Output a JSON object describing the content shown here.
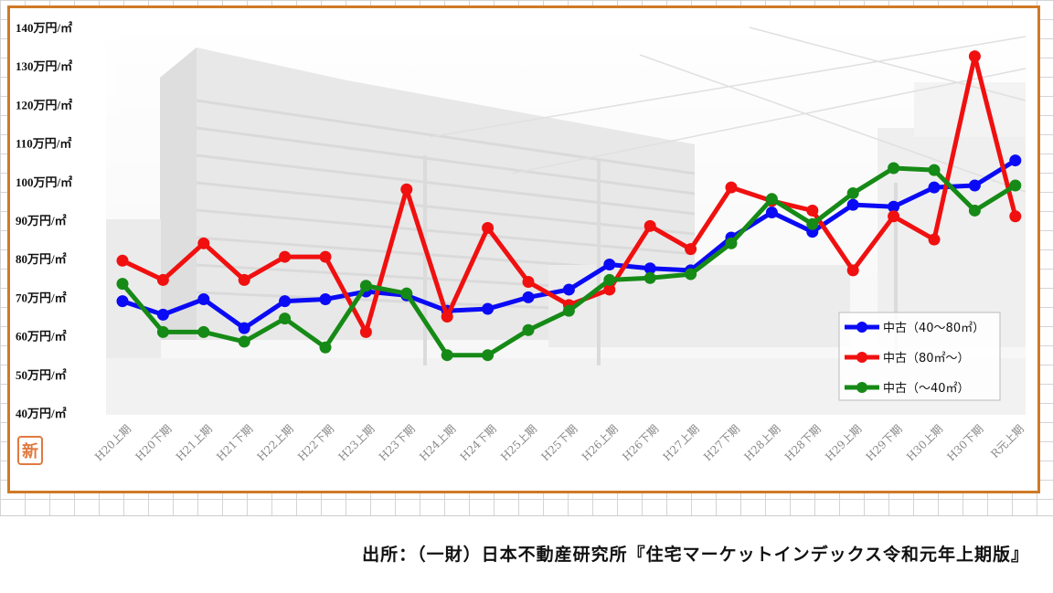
{
  "chart_data": {
    "type": "line",
    "categories": [
      "H20上期",
      "H20下期",
      "H21上期",
      "H21下期",
      "H22上期",
      "H22下期",
      "H23上期",
      "H23下期",
      "H24上期",
      "H24下期",
      "H25上期",
      "H25下期",
      "H26上期",
      "H26下期",
      "H27上期",
      "H27下期",
      "H28上期",
      "H28下期",
      "H29上期",
      "H29下期",
      "H30上期",
      "H30下期",
      "R元上期"
    ],
    "y_tick_labels": [
      "40万円/㎡",
      "50万円/㎡",
      "60万円/㎡",
      "70万円/㎡",
      "80万円/㎡",
      "90万円/㎡",
      "100万円/㎡",
      "110万円/㎡",
      "120万円/㎡",
      "130万円/㎡",
      "140万円/㎡"
    ],
    "ylim": [
      40,
      140
    ],
    "y_step": 10,
    "grid": false,
    "legend_position": "bottom-right",
    "series": [
      {
        "name": "中古（40～80㎡）",
        "color": "#0a0af5",
        "values": [
          69,
          65.5,
          69.5,
          62,
          69,
          69.5,
          71.5,
          70.5,
          66.5,
          67,
          70,
          72,
          78.5,
          77.5,
          77,
          85.5,
          92,
          87,
          94,
          93.5,
          98.5,
          99,
          105.5
        ]
      },
      {
        "name": "中古（80㎡～）",
        "color": "#f01010",
        "values": [
          79.5,
          74.5,
          84,
          74.5,
          80.5,
          80.5,
          61,
          98,
          65,
          88,
          74,
          68,
          72,
          88.5,
          82.5,
          98.5,
          95,
          92.5,
          77,
          91,
          85,
          132.5,
          91
        ]
      },
      {
        "name": "中古（～40㎡）",
        "color": "#168a16",
        "values": [
          73.5,
          61,
          61,
          58.5,
          64.5,
          57,
          73,
          71,
          55,
          55,
          61.5,
          66.5,
          74.5,
          75,
          76,
          84,
          95.5,
          89,
          97,
          103.5,
          103,
          92.5,
          99
        ]
      }
    ]
  },
  "badge_text": "新",
  "source_text": "出所：（一財）日本不動産研究所『住宅マーケットインデックス令和元年上期版』"
}
